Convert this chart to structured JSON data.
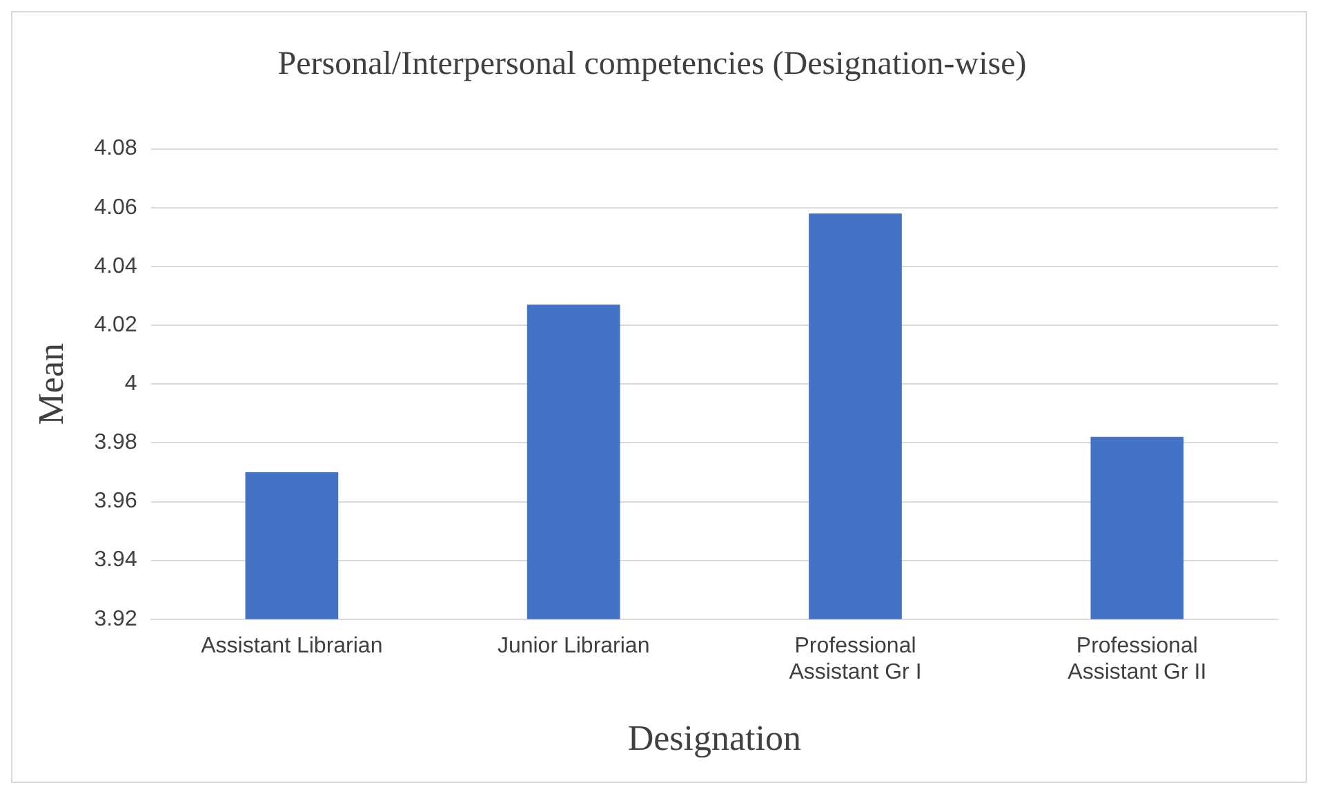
{
  "chart_data": {
    "type": "bar",
    "title": "Personal/Interpersonal competencies (Designation-wise)",
    "xlabel": "Designation",
    "ylabel": "Mean",
    "categories": [
      "Assistant Librarian",
      "Junior Librarian",
      "Professional Assistant Gr I",
      "Professional Assistant Gr II"
    ],
    "values": [
      3.97,
      4.027,
      4.058,
      3.982
    ],
    "color": "#4472c4",
    "ylim": [
      3.92,
      4.08
    ],
    "yticks": [
      3.92,
      3.94,
      3.96,
      3.98,
      4,
      4.02,
      4.04,
      4.06,
      4.08
    ],
    "grid": "y",
    "legend": false
  }
}
